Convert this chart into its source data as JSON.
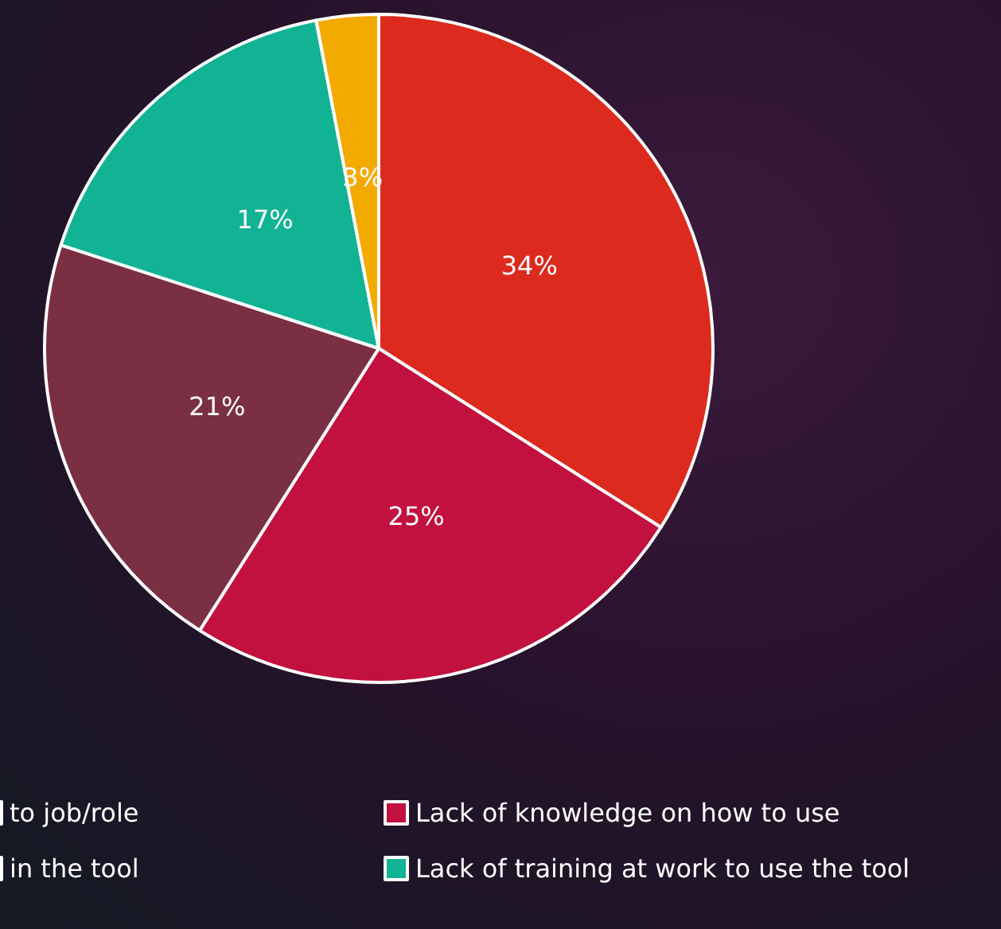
{
  "chart_data": {
    "type": "pie",
    "categories": [
      "to job/role",
      "Lack of knowledge on how to use",
      "in the tool",
      "Lack of training at work to use the tool",
      null
    ],
    "values": [
      34,
      25,
      21,
      17,
      3
    ],
    "colors": [
      "#dc2b1e",
      "#c2103f",
      "#7a3042",
      "#12b394",
      "#f2a900"
    ],
    "value_labels": [
      "34%",
      "25%",
      "21%",
      "17%",
      "3%"
    ],
    "legend": "bottom"
  }
}
